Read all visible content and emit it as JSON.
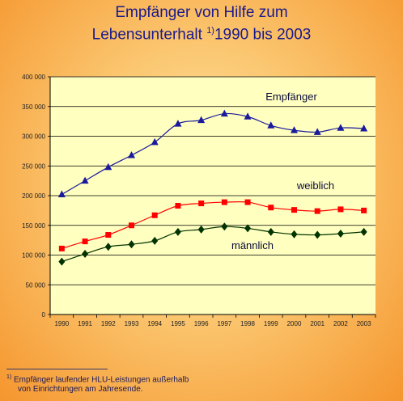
{
  "title_line1": "Empfänger von Hilfe zum",
  "title_line2_prefix": "Lebensunterhalt ",
  "title_sup": "1)",
  "title_line2_suffix": "1990 bis 2003",
  "footnote": {
    "marker": "1)",
    "line1": " Empfänger laufender HLU-Leistungen außerhalb",
    "line2": "von Einrichtungen am Jahresende."
  },
  "chart_data": {
    "type": "line",
    "title": "Empfänger von Hilfe zum Lebensunterhalt 1) 1990 bis 2003",
    "x": [
      "1990",
      "1991",
      "1992",
      "1993",
      "1994",
      "1995",
      "1996",
      "1997",
      "1998",
      "1999",
      "2000",
      "2001",
      "2002",
      "2003"
    ],
    "ylim": [
      0,
      400000
    ],
    "yticks": [
      0,
      50000,
      100000,
      150000,
      200000,
      250000,
      300000,
      350000,
      400000
    ],
    "ytick_labels": [
      "0",
      "50 000",
      "100 000",
      "150 000",
      "200 000",
      "250 000",
      "300 000",
      "350 000",
      "400 000"
    ],
    "grid": true,
    "plot_background": "#ffffc0",
    "series": [
      {
        "name": "Empfänger",
        "color": "#1a1a9c",
        "marker": "triangle",
        "values": [
          202000,
          225000,
          248000,
          268000,
          290000,
          321000,
          327000,
          338000,
          333000,
          318000,
          310000,
          307000,
          314000,
          313000
        ]
      },
      {
        "name": "weiblich",
        "color": "#ff0000",
        "marker": "square",
        "values": [
          111000,
          123000,
          134000,
          150000,
          167000,
          183000,
          187000,
          189000,
          189000,
          180000,
          176000,
          174000,
          177000,
          175000
        ]
      },
      {
        "name": "männlich",
        "color": "#003300",
        "marker": "diamond",
        "values": [
          89000,
          102000,
          114000,
          118000,
          124000,
          139000,
          143000,
          148000,
          145000,
          139000,
          135000,
          134000,
          136000,
          139000
        ]
      }
    ]
  }
}
